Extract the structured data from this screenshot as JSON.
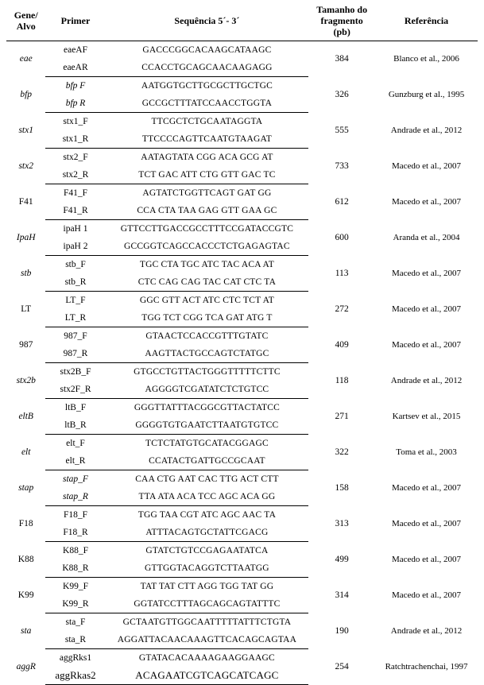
{
  "headers": {
    "gene": "Gene/\nAlvo",
    "primer": "Primer",
    "seq": "Sequência 5´- 3´",
    "size": "Tamanho do\nfragmento\n(pb)",
    "ref": "Referência"
  },
  "rows": [
    {
      "gene": "eae",
      "gene_italic": true,
      "p1": "eaeAF",
      "p1_italic": false,
      "s1": "GACCCGGCACAAGCATAAGC",
      "p2": "eaeAR",
      "p2_italic": false,
      "s2": "CCACCTGCAGCAACAAGAGG",
      "size": "384",
      "ref": "Blanco et al., 2006"
    },
    {
      "gene": "bfp",
      "gene_italic": true,
      "p1": "bfp F",
      "p1_italic": true,
      "s1": "AATGGTGCTTGCGCTTGCTGC",
      "p2": "bfp R",
      "p2_italic": true,
      "s2": "GCCGCTTTATCCAACCTGGTA",
      "size": "326",
      "ref": "Gunzburg et al., 1995"
    },
    {
      "gene": "stx1",
      "gene_italic": true,
      "p1": "stx1_F",
      "p1_italic": false,
      "s1": "TTCGCTCTGCAATAGGTA",
      "p2": "stx1_R",
      "p2_italic": false,
      "s2": "TTCCCCAGTTCAATGTAAGAT",
      "size": "555",
      "ref": "Andrade et al., 2012"
    },
    {
      "gene": "stx2",
      "gene_italic": true,
      "p1": "stx2_F",
      "p1_italic": false,
      "s1": "AATAGTATA CGG ACA GCG AT",
      "p2": "stx2_R",
      "p2_italic": false,
      "s2": "TCT GAC ATT CTG GTT GAC TC",
      "size": "733",
      "ref": "Macedo et al., 2007"
    },
    {
      "gene": "F41",
      "gene_italic": false,
      "p1": "F41_F",
      "p1_italic": false,
      "s1": "AGTATCTGGTTCAGT GAT GG",
      "p2": "F41_R",
      "p2_italic": false,
      "s2": "CCA CTA TAA GAG GTT GAA GC",
      "size": "612",
      "ref": "Macedo et al., 2007"
    },
    {
      "gene": "IpaH",
      "gene_italic": true,
      "p1": "ipaH 1",
      "p1_italic": false,
      "s1": "GTTCCTTGACCGCCTTTCCGATACCGTC",
      "p2": "ipaH 2",
      "p2_italic": false,
      "s2": "GCCGGTCAGCCACCCTCTGAGAGTAC",
      "size": "600",
      "ref": "Aranda et al., 2004"
    },
    {
      "gene": "stb",
      "gene_italic": true,
      "p1": "stb_F",
      "p1_italic": false,
      "s1": "TGC CTA TGC ATC TAC ACA AT",
      "p2": "stb_R",
      "p2_italic": false,
      "s2": "CTC CAG CAG TAC CAT CTC TA",
      "size": "113",
      "ref": "Macedo et al., 2007"
    },
    {
      "gene": "LT",
      "gene_italic": false,
      "p1": "LT_F",
      "p1_italic": false,
      "s1": "GGC GTT ACT ATC CTC TCT AT",
      "p2": "LT_R",
      "p2_italic": false,
      "s2": "TGG TCT CGG TCA GAT ATG T",
      "size": "272",
      "ref": "Macedo et al., 2007"
    },
    {
      "gene": "987",
      "gene_italic": false,
      "p1": "987_F",
      "p1_italic": false,
      "s1": "GTAACTCCACCGTTTGTATC",
      "p2": "987_R",
      "p2_italic": false,
      "s2": "AAGTTACTGCCAGTCTATGC",
      "size": "409",
      "ref": "Macedo et al., 2007"
    },
    {
      "gene": "stx2b",
      "gene_italic": true,
      "p1": "stx2B_F",
      "p1_italic": false,
      "s1": "GTGCCTGTTACTGGGTTTTTCTTC",
      "p2": "stx2F_R",
      "p2_italic": false,
      "s2": "AGGGGTCGATATCTCTGTCC",
      "size": "118",
      "ref": "Andrade et al., 2012"
    },
    {
      "gene": "eltB",
      "gene_italic": true,
      "p1": "ltB_F",
      "p1_italic": false,
      "s1": "GGGTTATTTACGGCGTTACTATCC",
      "p2": "ltB_R",
      "p2_italic": false,
      "s2": "GGGGTGTGAATCTTAATGTGTCC",
      "size": "271",
      "ref": "Kartsev et al., 2015"
    },
    {
      "gene": "elt",
      "gene_italic": true,
      "p1": "elt_F",
      "p1_italic": false,
      "s1": "TCTCTATGTGCATACGGAGC",
      "p2": "elt_R",
      "p2_italic": false,
      "s2": "CCATACTGATTGCCGCAAT",
      "size": "322",
      "ref": "Toma et al., 2003"
    },
    {
      "gene": "stap",
      "gene_italic": true,
      "p1": "stap_F",
      "p1_italic": true,
      "s1": "CAA CTG AAT CAC TTG ACT CTT",
      "p2": "stap_R",
      "p2_italic": true,
      "s2": "TTA ATA ACA TCC AGC ACA GG",
      "size": "158",
      "ref": "Macedo et al., 2007"
    },
    {
      "gene": "F18",
      "gene_italic": false,
      "p1": "F18_F",
      "p1_italic": false,
      "s1": "TGG TAA CGT ATC AGC AAC TA",
      "p2": "F18_R",
      "p2_italic": false,
      "s2": "ATTTACAGTGCTATTCGACG",
      "size": "313",
      "ref": "Macedo et al., 2007"
    },
    {
      "gene": "K88",
      "gene_italic": false,
      "p1": "K88_F",
      "p1_italic": false,
      "s1": "GTATCTGTCCGAGAATATCA",
      "p2": "K88_R",
      "p2_italic": false,
      "s2": "GTTGGTACAGGTCTTAATGG",
      "size": "499",
      "ref": "Macedo et al., 2007"
    },
    {
      "gene": "K99",
      "gene_italic": false,
      "p1": "K99_F",
      "p1_italic": false,
      "s1": "TAT TAT CTT AGG TGG TAT GG",
      "p2": "K99_R",
      "p2_italic": false,
      "s2": "GGTATCCTTTAGCAGCAGTATTTC",
      "size": "314",
      "ref": "Macedo et al., 2007"
    },
    {
      "gene": "sta",
      "gene_italic": true,
      "p1": "sta_F",
      "p1_italic": false,
      "s1": "GCTAATGTTGGCAATTTTTATTTCTGTA",
      "p2": "sta_R",
      "p2_italic": false,
      "s2": "AGGATTACAACAAAGTTCACAGCAGTAA",
      "size": "190",
      "ref": "Andrade et al., 2012"
    },
    {
      "gene": "aggR",
      "gene_italic": true,
      "p1": "aggRks1",
      "p1_italic": false,
      "s1": "GTATACACAAAAGAAGGAAGC",
      "p2": "aggRkas2",
      "p2_italic": false,
      "s2": "ACAGAATCGTCAGCATCAGC",
      "p2_large": true,
      "size": "254",
      "ref": "Ratchtrachenchai, 1997"
    }
  ]
}
